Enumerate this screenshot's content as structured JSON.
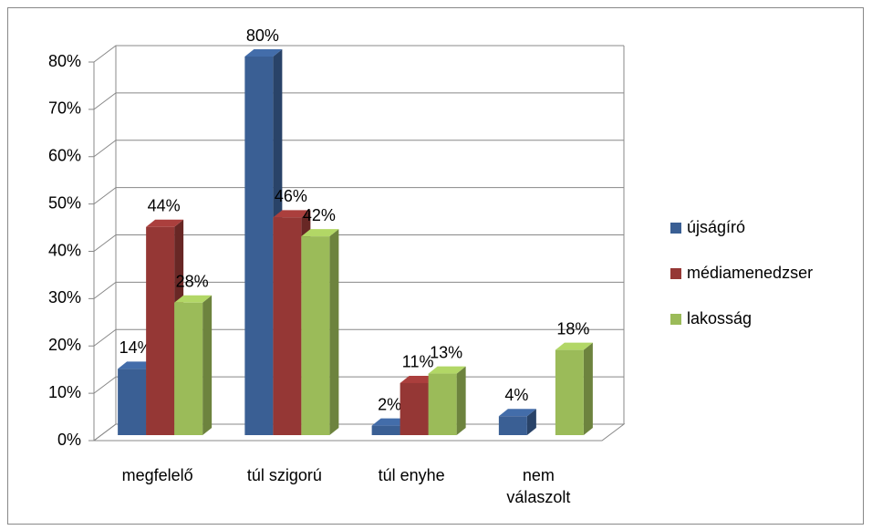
{
  "chart_data": {
    "type": "bar3d",
    "categories": [
      "megfelelő",
      "túl szigorú",
      "túl enyhe",
      "nem válaszolt"
    ],
    "series": [
      {
        "name": "újságíró",
        "color": "#3a5f94",
        "values": [
          14,
          80,
          2,
          4
        ],
        "value_labels": [
          "14%",
          "80%",
          "2%",
          "4%"
        ]
      },
      {
        "name": "médiamenedzser",
        "color": "#953735",
        "values": [
          44,
          46,
          11,
          null
        ],
        "value_labels": [
          "44%",
          "46%",
          "11%",
          null
        ]
      },
      {
        "name": "lakosság",
        "color": "#9bbb59",
        "values": [
          28,
          42,
          13,
          18
        ],
        "value_labels": [
          "28%",
          "42%",
          "13%",
          "18%"
        ]
      }
    ],
    "ylim": [
      0,
      80
    ],
    "yticks": [
      {
        "value": 0,
        "label": "0%"
      },
      {
        "value": 10,
        "label": "10%"
      },
      {
        "value": 20,
        "label": "20%"
      },
      {
        "value": 30,
        "label": "30%"
      },
      {
        "value": 40,
        "label": "40%"
      },
      {
        "value": 50,
        "label": "50%"
      },
      {
        "value": 60,
        "label": "60%"
      },
      {
        "value": 70,
        "label": "70%"
      },
      {
        "value": 80,
        "label": "80%"
      }
    ],
    "grid": true,
    "legend": "right"
  }
}
